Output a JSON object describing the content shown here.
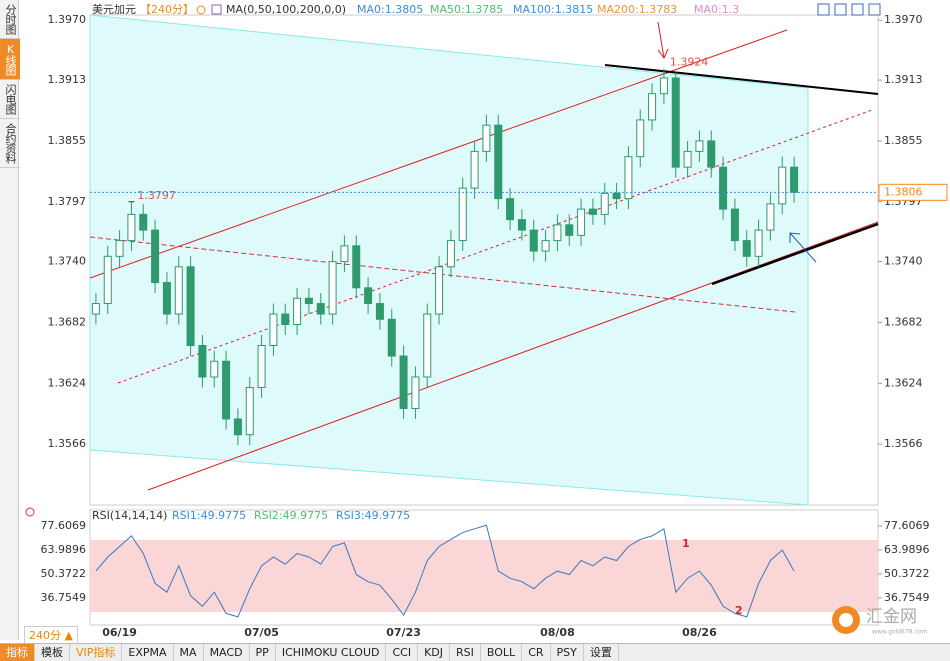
{
  "sidebar": [
    "分时图",
    "K线图",
    "闪电图",
    "合约资料"
  ],
  "toolbar": {
    "period": "240分",
    "items": [
      "指标",
      "模板",
      "VIP指标",
      "EXPMA",
      "MA",
      "MACD",
      "PP",
      "ICHIMOKU CLOUD",
      "CCI",
      "KDJ",
      "RSI",
      "BOLL",
      "CR",
      "PSY",
      "设置"
    ]
  },
  "watermark": {
    "name": "汇金网",
    "url": "www.gold678.com"
  },
  "chart_data": [
    {
      "type": "candlestick",
      "title": "美元加元",
      "period": "【240分】",
      "legend": [
        "MA(0,50,100,200,0,0)",
        "MA0:1.3805",
        "MA50:1.3785",
        "MA100:1.3815",
        "MA200:1.3783",
        "MA0:1.3"
      ],
      "categories": [
        null,
        null,
        "06/19",
        null,
        null,
        null,
        null,
        null,
        null,
        null,
        null,
        null,
        null,
        null,
        "07/05",
        null,
        null,
        null,
        null,
        null,
        null,
        null,
        null,
        null,
        null,
        null,
        "07/23",
        null,
        null,
        null,
        null,
        null,
        null,
        null,
        null,
        null,
        null,
        null,
        null,
        "08/08",
        null,
        null,
        null,
        null,
        null,
        null,
        null,
        null,
        null,
        null,
        null,
        "08/26",
        null,
        null,
        null,
        null,
        null,
        null,
        null,
        null
      ],
      "open": [
        1.369,
        1.37,
        1.3745,
        1.376,
        1.3785,
        1.377,
        1.372,
        1.369,
        1.3735,
        1.366,
        1.363,
        1.3645,
        1.359,
        1.3575,
        1.362,
        1.366,
        1.369,
        1.368,
        1.3705,
        1.37,
        1.369,
        1.374,
        1.3755,
        1.3715,
        1.37,
        1.3685,
        1.365,
        1.36,
        1.363,
        1.369,
        1.3735,
        1.376,
        1.381,
        1.3845,
        1.387,
        1.38,
        1.378,
        1.377,
        1.375,
        1.376,
        1.3775,
        1.3765,
        1.379,
        1.3785,
        1.3805,
        1.38,
        1.384,
        1.3875,
        1.39,
        1.3915,
        1.383,
        1.3845,
        1.3855,
        1.383,
        1.379,
        1.376,
        1.3745,
        1.377,
        1.3795,
        1.383
      ],
      "high": [
        1.371,
        1.3755,
        1.377,
        1.3797,
        1.3795,
        1.378,
        1.373,
        1.3745,
        1.3745,
        1.367,
        1.3655,
        1.3655,
        1.36,
        1.363,
        1.367,
        1.37,
        1.37,
        1.3715,
        1.3715,
        1.371,
        1.375,
        1.3765,
        1.3765,
        1.3725,
        1.371,
        1.3695,
        1.366,
        1.364,
        1.37,
        1.3745,
        1.377,
        1.382,
        1.3855,
        1.388,
        1.388,
        1.381,
        1.379,
        1.378,
        1.377,
        1.3785,
        1.3785,
        1.38,
        1.38,
        1.3815,
        1.3815,
        1.385,
        1.3885,
        1.391,
        1.3924,
        1.392,
        1.3855,
        1.3865,
        1.3865,
        1.384,
        1.38,
        1.377,
        1.378,
        1.3805,
        1.384,
        1.384
      ],
      "low": [
        1.368,
        1.369,
        1.3735,
        1.375,
        1.376,
        1.371,
        1.368,
        1.368,
        1.365,
        1.362,
        1.362,
        1.358,
        1.3565,
        1.3565,
        1.361,
        1.365,
        1.367,
        1.367,
        1.369,
        1.368,
        1.368,
        1.373,
        1.3705,
        1.369,
        1.3675,
        1.364,
        1.359,
        1.359,
        1.362,
        1.368,
        1.3725,
        1.375,
        1.38,
        1.3835,
        1.379,
        1.377,
        1.376,
        1.374,
        1.374,
        1.375,
        1.3755,
        1.3755,
        1.3775,
        1.3775,
        1.379,
        1.379,
        1.383,
        1.3865,
        1.389,
        1.382,
        1.382,
        1.3835,
        1.382,
        1.378,
        1.375,
        1.3735,
        1.3735,
        1.376,
        1.3785,
        1.3796
      ],
      "close": [
        1.37,
        1.3745,
        1.376,
        1.3785,
        1.377,
        1.372,
        1.369,
        1.3735,
        1.366,
        1.363,
        1.3645,
        1.359,
        1.3575,
        1.362,
        1.366,
        1.369,
        1.368,
        1.3705,
        1.37,
        1.369,
        1.374,
        1.3755,
        1.3715,
        1.37,
        1.3685,
        1.365,
        1.36,
        1.363,
        1.369,
        1.3735,
        1.376,
        1.381,
        1.3845,
        1.387,
        1.38,
        1.378,
        1.377,
        1.375,
        1.376,
        1.3775,
        1.3765,
        1.379,
        1.3785,
        1.3805,
        1.38,
        1.384,
        1.3875,
        1.39,
        1.3915,
        1.383,
        1.3845,
        1.3855,
        1.383,
        1.379,
        1.376,
        1.3745,
        1.377,
        1.3795,
        1.383,
        1.3806
      ],
      "up_color": "#2f9a6c",
      "down_color": "#2f9a6c",
      "last_price": 1.3806,
      "ylim": [
        1.3508,
        1.3975
      ],
      "yticks": [
        {
          "value": 1.397,
          "label": "1.3970"
        },
        1.3913,
        1.3855,
        1.3797,
        {
          "value": 1.374,
          "label": "1.3740"
        },
        1.3682,
        1.3624,
        1.3566
      ]
    },
    {
      "type": "line",
      "title": "RSI(14,14,14)",
      "legend": [
        "RSI1:49.9775",
        "RSI2:49.9775",
        "RSI3:49.9775"
      ],
      "series": [
        {
          "color": "#3a78c0",
          "values": [
            52,
            60,
            66,
            72,
            62,
            45,
            40,
            55,
            38,
            32,
            40,
            28,
            26,
            42,
            55,
            60,
            56,
            62,
            60,
            56,
            66,
            68,
            50,
            46,
            44,
            36,
            27,
            40,
            58,
            66,
            70,
            74,
            76,
            78,
            52,
            48,
            46,
            42,
            48,
            52,
            50,
            58,
            55,
            60,
            58,
            66,
            70,
            72,
            76,
            40,
            48,
            52,
            44,
            32,
            28,
            26,
            45,
            58,
            64,
            52
          ]
        }
      ],
      "ylim": [
        21.4,
        86.7
      ],
      "yticks": [
        77.6069,
        63.9896,
        50.3722,
        36.7549
      ],
      "annotations": [
        "1",
        "2"
      ]
    }
  ]
}
